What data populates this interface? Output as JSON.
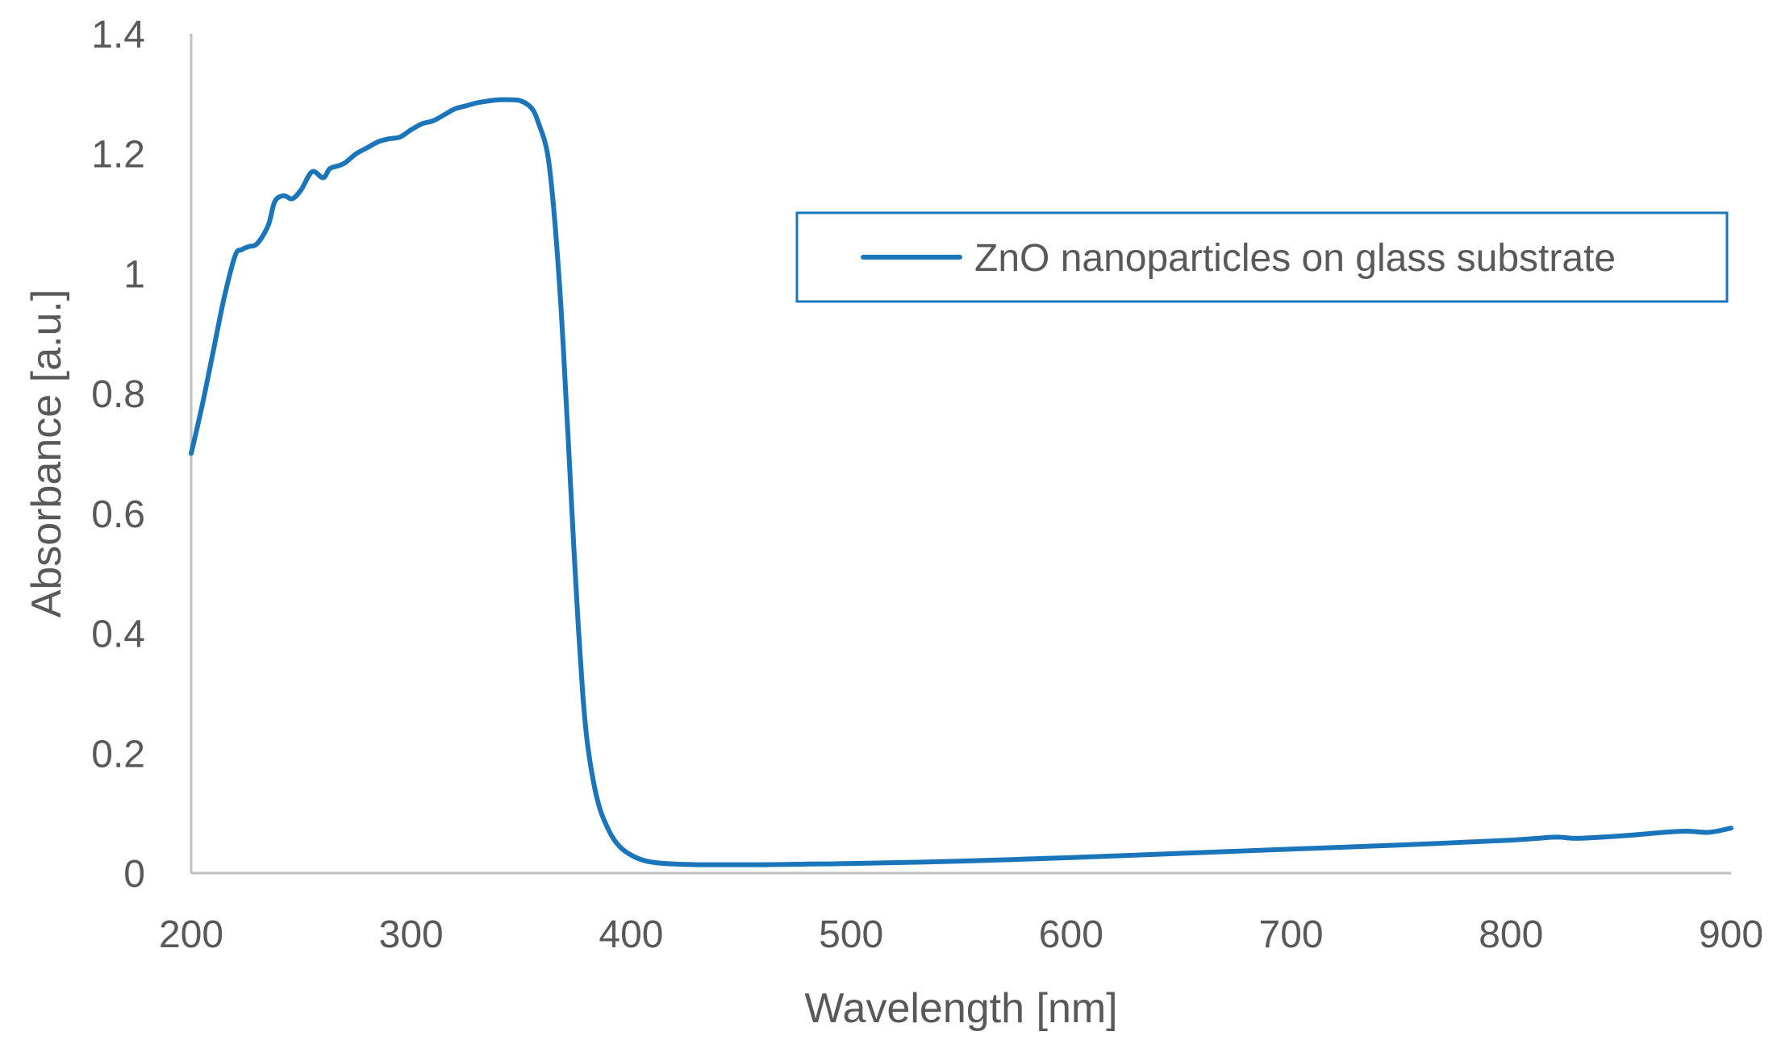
{
  "chart_data": {
    "type": "line",
    "title": "",
    "xlabel": "Wavelength [nm]",
    "ylabel": "Absorbance [a.u.]",
    "xlim": [
      200,
      900
    ],
    "ylim": [
      0,
      1.4
    ],
    "x_ticks": [
      "200",
      "300",
      "400",
      "500",
      "600",
      "700",
      "800",
      "900"
    ],
    "y_ticks": [
      "0",
      "0.2",
      "0.4",
      "0.6",
      "0.8",
      "1",
      "1.2",
      "1.4"
    ],
    "grid": false,
    "legend_position": "upper-right",
    "series_color": "#1B75BB",
    "axis_color": "#BFBFBF",
    "series": [
      {
        "name": "ZnO nanoparticles on glass substrate",
        "x": [
          200,
          205,
          210,
          215,
          220,
          223,
          226,
          230,
          235,
          238,
          242,
          246,
          250,
          255,
          260,
          263,
          267,
          270,
          275,
          280,
          285,
          290,
          295,
          300,
          305,
          310,
          315,
          320,
          325,
          330,
          335,
          340,
          345,
          350,
          355,
          358,
          362,
          365,
          368,
          370,
          372,
          374,
          376,
          378,
          380,
          383,
          386,
          390,
          393,
          396,
          400,
          405,
          410,
          420,
          430,
          440,
          460,
          480,
          500,
          550,
          600,
          650,
          700,
          750,
          800,
          820,
          830,
          850,
          870,
          880,
          890,
          900
        ],
        "y": [
          0.7,
          0.78,
          0.87,
          0.96,
          1.03,
          1.04,
          1.045,
          1.05,
          1.08,
          1.12,
          1.13,
          1.125,
          1.14,
          1.17,
          1.16,
          1.175,
          1.18,
          1.185,
          1.2,
          1.21,
          1.22,
          1.225,
          1.228,
          1.24,
          1.25,
          1.255,
          1.265,
          1.275,
          1.28,
          1.285,
          1.288,
          1.29,
          1.29,
          1.288,
          1.275,
          1.25,
          1.2,
          1.1,
          0.95,
          0.82,
          0.68,
          0.54,
          0.41,
          0.3,
          0.22,
          0.15,
          0.105,
          0.07,
          0.052,
          0.04,
          0.03,
          0.022,
          0.018,
          0.015,
          0.014,
          0.014,
          0.014,
          0.015,
          0.016,
          0.02,
          0.026,
          0.033,
          0.04,
          0.047,
          0.055,
          0.06,
          0.058,
          0.062,
          0.068,
          0.07,
          0.068,
          0.075
        ]
      }
    ]
  }
}
